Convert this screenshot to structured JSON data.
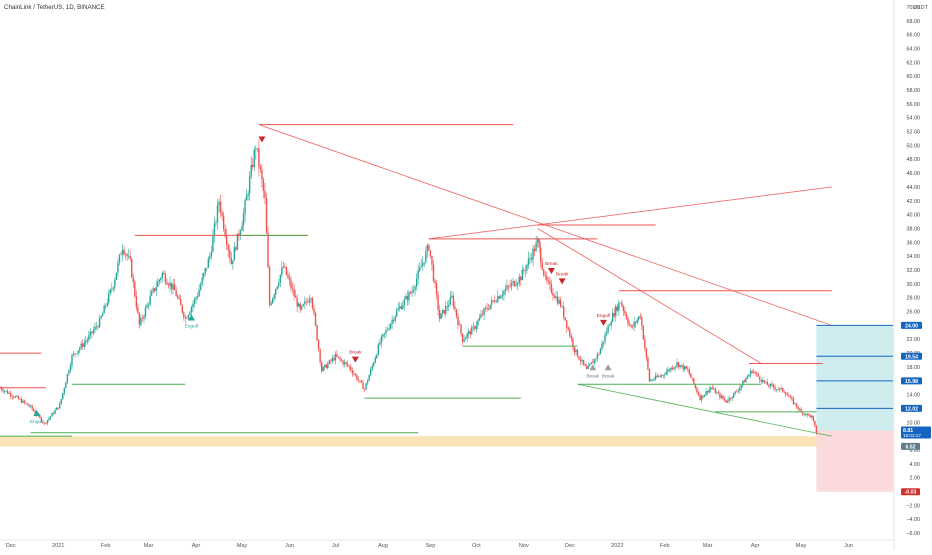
{
  "header": {
    "symbol_line": "ChainLink / TetherUS, 1D, BINANCE",
    "currency": "USDT"
  },
  "colors": {
    "up": "#26a69a",
    "down": "#ef5350",
    "red_line": "#ef5350",
    "green_line": "#4caf50",
    "zone": "#fbe0b0",
    "target_fill": "#cfecef",
    "stop_fill": "#fadada",
    "blue_line": "#1565c0",
    "price_tag": "#1565c0",
    "stop_tag": "#d32f2f"
  },
  "chart_data": {
    "type": "candlestick",
    "title": "ChainLink / TetherUS, 1D, BINANCE",
    "y_unit": "USDT",
    "ylim": [
      -7,
      71
    ],
    "y_ticks": [
      -6,
      -4,
      -2,
      0,
      2,
      4,
      6,
      8,
      10,
      12,
      14,
      16,
      18,
      20,
      22,
      24,
      26,
      28,
      30,
      32,
      34,
      36,
      38,
      40,
      42,
      44,
      46,
      48,
      50,
      52,
      54,
      56,
      58,
      60,
      62,
      64,
      66,
      68,
      70
    ],
    "y_tick_labels": [
      "−6.00",
      "−4.00",
      "−2.00",
      "0.00",
      "2.00",
      "4.00",
      "6.00",
      "8.00",
      "10.00",
      "12.00",
      "14.00",
      "16.00",
      "18.00",
      "20.00",
      "22.00",
      "24.00",
      "26.00",
      "28.00",
      "30.00",
      "32.00",
      "34.00",
      "36.00",
      "38.00",
      "40.00",
      "42.00",
      "44.00",
      "46.00",
      "48.00",
      "50.00",
      "52.00",
      "54.00",
      "56.00",
      "58.00",
      "60.00",
      "62.00",
      "64.00",
      "66.00",
      "68.00",
      "70.00"
    ],
    "x_range": [
      "2020-11-24",
      "2022-06-30"
    ],
    "x_ticks": [
      {
        "date": "2020-12-01",
        "label": "Dec"
      },
      {
        "date": "2021-01-01",
        "label": "2021"
      },
      {
        "date": "2021-02-01",
        "label": "Feb"
      },
      {
        "date": "2021-03-01",
        "label": "Mar"
      },
      {
        "date": "2021-04-01",
        "label": "Apr"
      },
      {
        "date": "2021-05-01",
        "label": "May"
      },
      {
        "date": "2021-06-01",
        "label": "Jun"
      },
      {
        "date": "2021-07-01",
        "label": "Jul"
      },
      {
        "date": "2021-08-01",
        "label": "Aug"
      },
      {
        "date": "2021-09-01",
        "label": "Sep"
      },
      {
        "date": "2021-10-01",
        "label": "Oct"
      },
      {
        "date": "2021-11-01",
        "label": "Nov"
      },
      {
        "date": "2021-12-01",
        "label": "Dec"
      },
      {
        "date": "2022-01-01",
        "label": "2022"
      },
      {
        "date": "2022-02-01",
        "label": "Feb"
      },
      {
        "date": "2022-03-01",
        "label": "Mar"
      },
      {
        "date": "2022-04-01",
        "label": "Apr"
      },
      {
        "date": "2022-05-01",
        "label": "May"
      },
      {
        "date": "2022-06-01",
        "label": "Jun"
      }
    ],
    "price_path": [
      [
        "2020-11-24",
        15.0
      ],
      [
        "2020-12-05",
        13.5
      ],
      [
        "2020-12-14",
        12.2
      ],
      [
        "2020-12-23",
        9.8
      ],
      [
        "2021-01-02",
        12.5
      ],
      [
        "2021-01-10",
        19.5
      ],
      [
        "2021-01-20",
        22.0
      ],
      [
        "2021-01-28",
        24.5
      ],
      [
        "2021-02-06",
        30.0
      ],
      [
        "2021-02-12",
        35.5
      ],
      [
        "2021-02-17",
        33.0
      ],
      [
        "2021-02-23",
        24.0
      ],
      [
        "2021-03-02",
        28.0
      ],
      [
        "2021-03-10",
        31.5
      ],
      [
        "2021-03-18",
        29.0
      ],
      [
        "2021-03-25",
        25.0
      ],
      [
        "2021-04-02",
        28.5
      ],
      [
        "2021-04-10",
        34.0
      ],
      [
        "2021-04-16",
        42.0
      ],
      [
        "2021-04-24",
        33.0
      ],
      [
        "2021-05-02",
        40.0
      ],
      [
        "2021-05-10",
        50.0
      ],
      [
        "2021-05-16",
        42.0
      ],
      [
        "2021-05-19",
        27.0
      ],
      [
        "2021-05-28",
        32.5
      ],
      [
        "2021-06-08",
        26.0
      ],
      [
        "2021-06-15",
        28.5
      ],
      [
        "2021-06-22",
        17.5
      ],
      [
        "2021-07-01",
        19.5
      ],
      [
        "2021-07-10",
        18.0
      ],
      [
        "2021-07-20",
        14.8
      ],
      [
        "2021-07-30",
        21.5
      ],
      [
        "2021-08-10",
        26.0
      ],
      [
        "2021-08-20",
        29.0
      ],
      [
        "2021-08-31",
        35.5
      ],
      [
        "2021-09-07",
        25.0
      ],
      [
        "2021-09-15",
        28.0
      ],
      [
        "2021-09-22",
        22.0
      ],
      [
        "2021-09-29",
        23.5
      ],
      [
        "2021-10-06",
        26.0
      ],
      [
        "2021-10-14",
        28.0
      ],
      [
        "2021-10-22",
        29.5
      ],
      [
        "2021-10-30",
        31.0
      ],
      [
        "2021-11-10",
        36.0
      ],
      [
        "2021-11-15",
        30.5
      ],
      [
        "2021-11-25",
        27.0
      ],
      [
        "2021-12-04",
        20.5
      ],
      [
        "2021-12-12",
        17.5
      ],
      [
        "2021-12-20",
        20.0
      ],
      [
        "2021-12-28",
        25.0
      ],
      [
        "2022-01-03",
        27.5
      ],
      [
        "2022-01-10",
        23.5
      ],
      [
        "2022-01-16",
        25.5
      ],
      [
        "2022-01-22",
        16.0
      ],
      [
        "2022-01-30",
        16.8
      ],
      [
        "2022-02-09",
        18.5
      ],
      [
        "2022-02-16",
        17.5
      ],
      [
        "2022-02-24",
        13.5
      ],
      [
        "2022-03-03",
        15.0
      ],
      [
        "2022-03-13",
        13.0
      ],
      [
        "2022-03-20",
        14.5
      ],
      [
        "2022-03-30",
        17.5
      ],
      [
        "2022-04-08",
        15.5
      ],
      [
        "2022-04-20",
        14.5
      ],
      [
        "2022-05-01",
        11.5
      ],
      [
        "2022-05-08",
        10.8
      ],
      [
        "2022-05-11",
        8.5
      ]
    ],
    "horizontal_levels": [
      {
        "price": 20.0,
        "from": "2020-11-24",
        "to": "2020-12-21",
        "color": "red"
      },
      {
        "price": 15.0,
        "from": "2020-11-24",
        "to": "2020-12-24",
        "color": "red"
      },
      {
        "price": 8.0,
        "from": "2020-11-24",
        "to": "2021-01-10",
        "color": "green"
      },
      {
        "price": 8.5,
        "from": "2020-12-14",
        "to": "2021-08-24",
        "color": "green"
      },
      {
        "price": 15.5,
        "from": "2021-01-10",
        "to": "2021-03-25",
        "color": "green"
      },
      {
        "price": 37.0,
        "from": "2021-02-20",
        "to": "2021-06-13",
        "color": "red"
      },
      {
        "price": 37.0,
        "from": "2021-05-01",
        "to": "2021-06-13",
        "color": "green"
      },
      {
        "price": 53.0,
        "from": "2021-05-12",
        "to": "2021-10-25",
        "color": "red"
      },
      {
        "price": 13.5,
        "from": "2021-07-20",
        "to": "2021-10-30",
        "color": "green"
      },
      {
        "price": 36.5,
        "from": "2021-08-31",
        "to": "2021-12-19",
        "color": "red"
      },
      {
        "price": 21.0,
        "from": "2021-09-22",
        "to": "2021-12-06",
        "color": "green"
      },
      {
        "price": 38.5,
        "from": "2021-11-10",
        "to": "2022-01-26",
        "color": "red"
      },
      {
        "price": 29.0,
        "from": "2022-01-02",
        "to": "2022-05-21",
        "color": "red"
      },
      {
        "price": 15.5,
        "from": "2021-12-06",
        "to": "2022-04-05",
        "color": "green"
      },
      {
        "price": 18.5,
        "from": "2022-03-28",
        "to": "2022-05-15",
        "color": "red"
      },
      {
        "price": 11.5,
        "from": "2022-03-06",
        "to": "2022-05-11",
        "color": "green"
      }
    ],
    "trend_lines": [
      {
        "from": [
          "2021-05-12",
          53.0
        ],
        "to": [
          "2022-05-21",
          24.0
        ],
        "color": "red"
      },
      {
        "from": [
          "2021-11-10",
          38.0
        ],
        "to": [
          "2022-04-05",
          18.5
        ],
        "color": "red"
      },
      {
        "from": [
          "2021-08-31",
          36.5
        ],
        "to": [
          "2022-05-21",
          44.0
        ],
        "color": "red"
      },
      {
        "from": [
          "2021-12-06",
          15.5
        ],
        "to": [
          "2022-05-21",
          8.0
        ],
        "color": "green"
      }
    ],
    "zone": {
      "from_price": 6.5,
      "to_price": 8.0
    },
    "position": {
      "start": "2022-05-11",
      "end": "2022-06-30",
      "entry": 8.81,
      "target": 24.0,
      "stop": -0.03,
      "levels": [
        {
          "price": 24.0,
          "label": "24.00"
        },
        {
          "price": 19.54,
          "label": "19.54"
        },
        {
          "price": 15.98,
          "label": "15.98"
        },
        {
          "price": 12.02,
          "label": "12.02"
        }
      ]
    },
    "markers": [
      {
        "date": "2020-12-18",
        "price": 11.2,
        "kind": "up",
        "label": "Engulf"
      },
      {
        "date": "2021-03-29",
        "price": 25.0,
        "kind": "up",
        "label": "Engulf"
      },
      {
        "date": "2021-05-14",
        "price": 51.0,
        "kind": "down",
        "label": ""
      },
      {
        "date": "2021-07-14",
        "price": 19.2,
        "kind": "down",
        "label": "Break"
      },
      {
        "date": "2021-11-19",
        "price": 32.0,
        "kind": "down",
        "label": "Break"
      },
      {
        "date": "2021-11-26",
        "price": 30.5,
        "kind": "down",
        "label": "Break"
      },
      {
        "date": "2021-12-23",
        "price": 24.5,
        "kind": "down",
        "label": "Engulf"
      },
      {
        "date": "2021-12-16",
        "price": 17.8,
        "kind": "neutral",
        "label": "Break"
      },
      {
        "date": "2021-12-26",
        "price": 17.8,
        "kind": "neutral",
        "label": "Break"
      }
    ],
    "price_tags": [
      {
        "price": 8.81,
        "label": "8.81",
        "sub": "16:02:17",
        "kind": "current"
      },
      {
        "price": 6.52,
        "label": "6.52",
        "kind": "zone"
      },
      {
        "price": -0.03,
        "label": "-0.03",
        "kind": "stop"
      }
    ]
  }
}
